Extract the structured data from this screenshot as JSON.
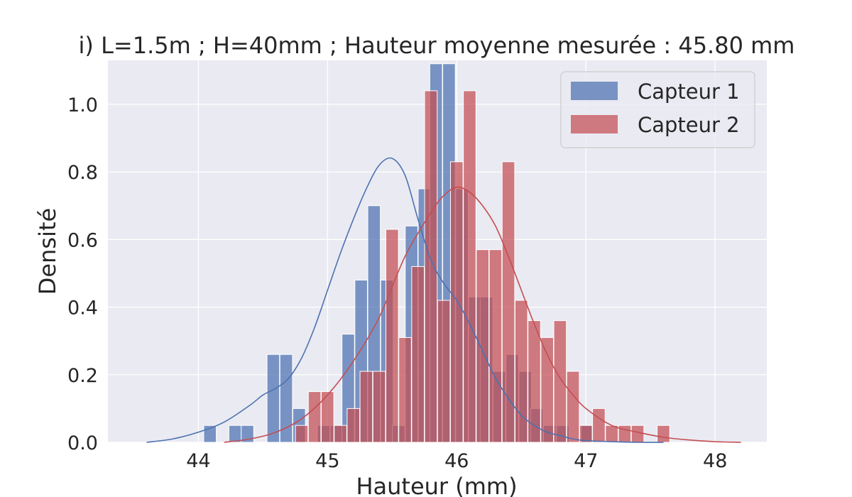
{
  "chart_data": {
    "type": "histogram",
    "title": "i) L=1.5m ; H=40mm ; Hauteur moyenne mesurée : 45.80 mm",
    "xlabel": "Hauteur (mm)",
    "ylabel": "Densité",
    "xlim": [
      43.3,
      48.4
    ],
    "ylim": [
      0,
      1.13
    ],
    "xticks": [
      44,
      45,
      46,
      47,
      48
    ],
    "yticks": [
      0.0,
      0.2,
      0.4,
      0.6,
      0.8,
      1.0
    ],
    "ytick_labels": [
      "0.0",
      "0.2",
      "0.4",
      "0.6",
      "0.8",
      "1.0"
    ],
    "grid": true,
    "legend_position": "upper right",
    "bin_width": 0.097,
    "series": [
      {
        "name": "Capteur 1",
        "color": "#4c72b0",
        "bins": [
          {
            "x": 44.09,
            "y": 0.05
          },
          {
            "x": 44.285,
            "y": 0.05
          },
          {
            "x": 44.38,
            "y": 0.05
          },
          {
            "x": 44.58,
            "y": 0.26
          },
          {
            "x": 44.68,
            "y": 0.26
          },
          {
            "x": 44.78,
            "y": 0.1
          },
          {
            "x": 44.97,
            "y": 0.05
          },
          {
            "x": 45.07,
            "y": 0.05
          },
          {
            "x": 45.16,
            "y": 0.32
          },
          {
            "x": 45.26,
            "y": 0.48
          },
          {
            "x": 45.36,
            "y": 0.7
          },
          {
            "x": 45.46,
            "y": 0.48
          },
          {
            "x": 45.55,
            "y": 0.05
          },
          {
            "x": 45.65,
            "y": 0.64
          },
          {
            "x": 45.75,
            "y": 0.75
          },
          {
            "x": 45.84,
            "y": 1.12
          },
          {
            "x": 45.94,
            "y": 1.12
          },
          {
            "x": 46.04,
            "y": 0.75
          },
          {
            "x": 46.14,
            "y": 0.43
          },
          {
            "x": 46.23,
            "y": 0.43
          },
          {
            "x": 46.33,
            "y": 0.21
          },
          {
            "x": 46.43,
            "y": 0.26
          },
          {
            "x": 46.53,
            "y": 0.21
          },
          {
            "x": 46.62,
            "y": 0.1
          },
          {
            "x": 46.72,
            "y": 0.05
          },
          {
            "x": 46.82,
            "y": 0.05
          },
          {
            "x": 47.01,
            "y": 0.05
          }
        ],
        "kde": {
          "x": [
            43.6,
            43.8,
            44.0,
            44.2,
            44.4,
            44.5,
            44.6,
            44.7,
            44.8,
            44.9,
            45.0,
            45.1,
            45.2,
            45.3,
            45.4,
            45.5,
            45.6,
            45.7,
            45.8,
            45.9,
            46.0,
            46.1,
            46.2,
            46.3,
            46.4,
            46.5,
            46.6,
            46.7,
            46.8,
            46.9,
            47.0,
            47.2,
            47.4,
            47.6
          ],
          "y": [
            0.0,
            0.01,
            0.03,
            0.06,
            0.11,
            0.14,
            0.16,
            0.19,
            0.25,
            0.34,
            0.45,
            0.56,
            0.66,
            0.75,
            0.82,
            0.84,
            0.79,
            0.66,
            0.54,
            0.47,
            0.42,
            0.35,
            0.27,
            0.19,
            0.13,
            0.08,
            0.05,
            0.03,
            0.02,
            0.01,
            0.005,
            0.002,
            0.0,
            0.0
          ]
        }
      },
      {
        "name": "Capteur 2",
        "color": "#c44e52",
        "bins": [
          {
            "x": 44.8,
            "y": 0.05
          },
          {
            "x": 44.9,
            "y": 0.15
          },
          {
            "x": 45.0,
            "y": 0.15
          },
          {
            "x": 45.1,
            "y": 0.05
          },
          {
            "x": 45.2,
            "y": 0.1
          },
          {
            "x": 45.3,
            "y": 0.21
          },
          {
            "x": 45.4,
            "y": 0.21
          },
          {
            "x": 45.5,
            "y": 0.63
          },
          {
            "x": 45.6,
            "y": 0.31
          },
          {
            "x": 45.7,
            "y": 0.52
          },
          {
            "x": 45.8,
            "y": 1.04
          },
          {
            "x": 45.9,
            "y": 0.42
          },
          {
            "x": 46.0,
            "y": 0.83
          },
          {
            "x": 46.1,
            "y": 1.04
          },
          {
            "x": 46.2,
            "y": 0.57
          },
          {
            "x": 46.3,
            "y": 0.57
          },
          {
            "x": 46.4,
            "y": 0.83
          },
          {
            "x": 46.5,
            "y": 0.42
          },
          {
            "x": 46.6,
            "y": 0.36
          },
          {
            "x": 46.7,
            "y": 0.31
          },
          {
            "x": 46.8,
            "y": 0.36
          },
          {
            "x": 46.9,
            "y": 0.21
          },
          {
            "x": 47.0,
            "y": 0.05
          },
          {
            "x": 47.1,
            "y": 0.1
          },
          {
            "x": 47.2,
            "y": 0.05
          },
          {
            "x": 47.3,
            "y": 0.05
          },
          {
            "x": 47.4,
            "y": 0.05
          },
          {
            "x": 47.6,
            "y": 0.05
          }
        ],
        "kde": {
          "x": [
            44.2,
            44.4,
            44.6,
            44.8,
            45.0,
            45.2,
            45.4,
            45.6,
            45.8,
            45.9,
            46.0,
            46.1,
            46.2,
            46.3,
            46.4,
            46.5,
            46.6,
            46.7,
            46.8,
            46.9,
            47.0,
            47.2,
            47.4,
            47.6,
            47.8,
            48.0,
            48.2
          ],
          "y": [
            0.0,
            0.01,
            0.03,
            0.07,
            0.14,
            0.24,
            0.37,
            0.55,
            0.68,
            0.73,
            0.755,
            0.74,
            0.7,
            0.64,
            0.55,
            0.45,
            0.35,
            0.26,
            0.19,
            0.14,
            0.1,
            0.05,
            0.03,
            0.015,
            0.007,
            0.002,
            0.0
          ]
        }
      }
    ]
  }
}
